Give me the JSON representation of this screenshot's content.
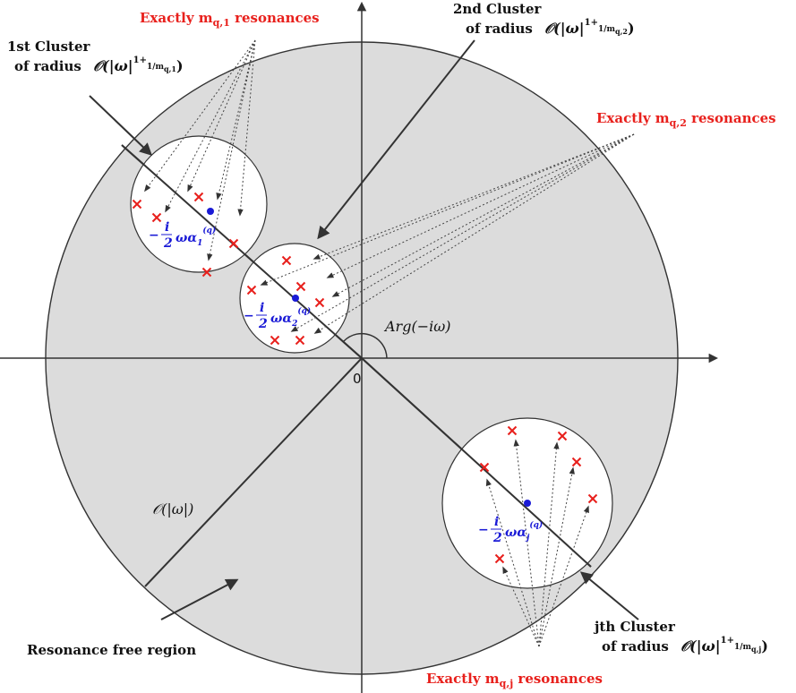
{
  "colors": {
    "region_fill": "#dcdcdc",
    "resonance_red": "#e8201c",
    "center_blue": "#1a1ad6",
    "line": "#333333"
  },
  "labels": {
    "exactly_1": "Exactly m",
    "exactly_1_sub": "q,1",
    "exactly_1_tail": " resonances",
    "exactly_2": "Exactly m",
    "exactly_2_sub": "q,2",
    "exactly_2_tail": " resonances",
    "exactly_j": "Exactly m",
    "exactly_j_sub": "q,j",
    "exactly_j_tail": " resonances",
    "cluster1_line1": "1st Cluster",
    "cluster1_line2": "of radius",
    "cluster2_line1": "2nd Cluster",
    "cluster2_line2": "of radius",
    "clusterj_line1": "jth Cluster",
    "clusterj_line2": "of radius",
    "radius_expr_1": "𝒪(|ω|",
    "radius_sup_1": "1+",
    "radius_sub_1": "q,1",
    "radius_sub_2": "q,2",
    "radius_sub_j": "q,j",
    "arg_label": "Arg(−iω)",
    "origin_label": "0",
    "big_o_label": "𝒪(|ω|)",
    "resonance_free": "Resonance free region",
    "center_1_main": "ωα",
    "center_1_sub": "1",
    "center_2_sub": "2",
    "center_j_sub": "j",
    "center_sup": "(q)",
    "center_prefix": "−",
    "center_frac_num": "i",
    "center_frac_den": "2"
  },
  "icons": {
    "resonance_marker": "red-cross",
    "cluster_center": "blue-dot"
  }
}
